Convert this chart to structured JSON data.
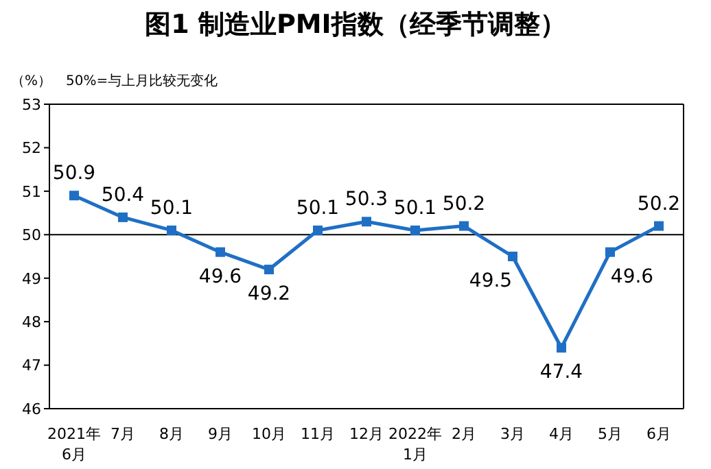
{
  "chart_data": {
    "type": "line",
    "title": "图1 制造业PMI指数（经季节调整）",
    "ylabel": "（%）",
    "annotations": [
      "50%=与上月比较无变化"
    ],
    "categories": [
      "2021年\n6月",
      "7月",
      "8月",
      "9月",
      "10月",
      "11月",
      "12月",
      "2022年\n1月",
      "2月",
      "3月",
      "4月",
      "5月",
      "6月"
    ],
    "series": [
      {
        "color": "#1f6fc5",
        "values": [
          50.9,
          50.4,
          50.1,
          49.6,
          49.2,
          50.1,
          50.3,
          50.1,
          50.2,
          49.5,
          47.4,
          49.6,
          50.2
        ]
      }
    ],
    "ylim": [
      46,
      53
    ],
    "yticks": [
      46,
      47,
      48,
      49,
      50,
      51,
      52,
      53
    ],
    "ref_lines": [
      {
        "axis": "y",
        "value": 50,
        "color": "#000000"
      }
    ],
    "data_labels": true,
    "marker": "square",
    "grid": false
  }
}
